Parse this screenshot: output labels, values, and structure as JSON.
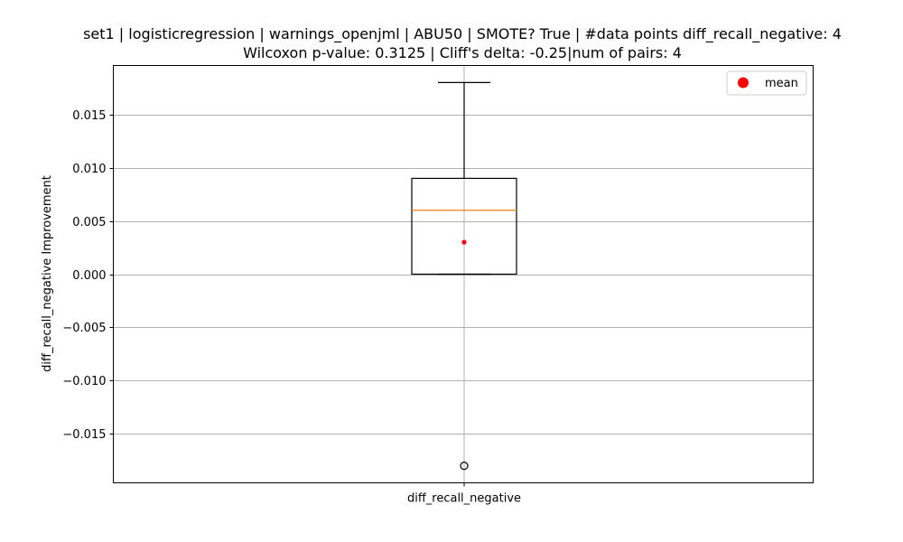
{
  "chart_data": {
    "type": "box",
    "title_line1": "set1 | logisticregression | warnings_openjml | ABU50 | SMOTE? True | #data points diff_recall_negative: 4",
    "title_line2": "Wilcoxon p-value: 0.3125 | Cliff's delta: -0.25|num of pairs: 4",
    "xlabel": "",
    "ylabel": "diff_recall_negative Improvement",
    "categories": [
      "diff_recall_negative"
    ],
    "ylim": [
      -0.0196,
      0.0196
    ],
    "yticks": [
      -0.015,
      -0.01,
      -0.005,
      0.0,
      0.005,
      0.01,
      0.015
    ],
    "ytick_labels": [
      "−0.015",
      "−0.010",
      "−0.005",
      "0.000",
      "0.005",
      "0.010",
      "0.015"
    ],
    "grid": true,
    "legend": {
      "position": "top-right",
      "entries": [
        {
          "label": "mean",
          "marker": "circle",
          "color": "#ff0000"
        }
      ]
    },
    "boxes": [
      {
        "name": "diff_recall_negative",
        "q1": 0.0,
        "median": 0.006,
        "q3": 0.009,
        "whisker_low": 0.0,
        "whisker_high": 0.018,
        "mean": 0.003,
        "outliers": [
          -0.018
        ]
      }
    ],
    "colors": {
      "box": "#000000",
      "median": "#ff7f0e",
      "mean": "#ff0000",
      "grid": "#b0b0b0"
    }
  }
}
